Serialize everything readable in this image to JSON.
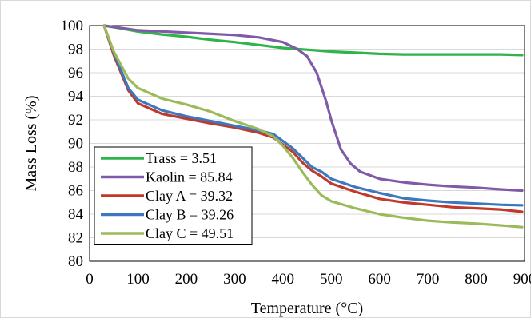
{
  "chart_data": {
    "type": "line",
    "title": "",
    "xlabel": "Temperature (°C)",
    "ylabel": "Mass Loss (%)",
    "xlim": [
      0,
      900
    ],
    "ylim": [
      80,
      100
    ],
    "x_ticks": [
      "0",
      "100",
      "200",
      "300",
      "400",
      "500",
      "600",
      "700",
      "800",
      "900"
    ],
    "y_ticks": [
      "80",
      "82",
      "84",
      "86",
      "88",
      "90",
      "92",
      "94",
      "96",
      "98",
      "100"
    ],
    "grid": "horizontal",
    "legend_position": "bottom-left",
    "series": [
      {
        "name": "Trass = 3.51",
        "color": "#2fb34a",
        "points": [
          [
            30,
            100
          ],
          [
            60,
            99.8
          ],
          [
            100,
            99.5
          ],
          [
            150,
            99.25
          ],
          [
            200,
            99.05
          ],
          [
            250,
            98.8
          ],
          [
            300,
            98.6
          ],
          [
            350,
            98.35
          ],
          [
            400,
            98.1
          ],
          [
            450,
            97.95
          ],
          [
            500,
            97.8
          ],
          [
            550,
            97.7
          ],
          [
            600,
            97.6
          ],
          [
            650,
            97.55
          ],
          [
            700,
            97.55
          ],
          [
            750,
            97.55
          ],
          [
            800,
            97.55
          ],
          [
            850,
            97.55
          ],
          [
            895,
            97.5
          ]
        ]
      },
      {
        "name": "Kaolin = 85.84",
        "color": "#7f5aa8",
        "points": [
          [
            30,
            100
          ],
          [
            100,
            99.6
          ],
          [
            200,
            99.4
          ],
          [
            300,
            99.2
          ],
          [
            350,
            99.0
          ],
          [
            400,
            98.6
          ],
          [
            430,
            98.0
          ],
          [
            450,
            97.4
          ],
          [
            470,
            96.0
          ],
          [
            490,
            93.5
          ],
          [
            500,
            92.0
          ],
          [
            520,
            89.5
          ],
          [
            540,
            88.3
          ],
          [
            560,
            87.6
          ],
          [
            600,
            87.0
          ],
          [
            650,
            86.7
          ],
          [
            700,
            86.5
          ],
          [
            750,
            86.35
          ],
          [
            800,
            86.25
          ],
          [
            850,
            86.1
          ],
          [
            895,
            86.0
          ]
        ]
      },
      {
        "name": "Clay A = 39.32",
        "color": "#c0392b",
        "points": [
          [
            30,
            100
          ],
          [
            50,
            97.5
          ],
          [
            80,
            94.5
          ],
          [
            100,
            93.4
          ],
          [
            150,
            92.5
          ],
          [
            200,
            92.1
          ],
          [
            250,
            91.7
          ],
          [
            300,
            91.35
          ],
          [
            350,
            90.9
          ],
          [
            380,
            90.5
          ],
          [
            400,
            89.9
          ],
          [
            420,
            89.3
          ],
          [
            440,
            88.4
          ],
          [
            460,
            87.7
          ],
          [
            480,
            87.2
          ],
          [
            500,
            86.6
          ],
          [
            550,
            85.9
          ],
          [
            600,
            85.3
          ],
          [
            650,
            85.0
          ],
          [
            700,
            84.8
          ],
          [
            750,
            84.6
          ],
          [
            800,
            84.5
          ],
          [
            850,
            84.4
          ],
          [
            895,
            84.2
          ]
        ]
      },
      {
        "name": "Clay B = 39.26",
        "color": "#3b78c0",
        "points": [
          [
            30,
            100
          ],
          [
            50,
            97.7
          ],
          [
            80,
            94.7
          ],
          [
            100,
            93.7
          ],
          [
            150,
            92.8
          ],
          [
            200,
            92.3
          ],
          [
            250,
            91.9
          ],
          [
            300,
            91.5
          ],
          [
            350,
            91.1
          ],
          [
            380,
            90.8
          ],
          [
            400,
            90.2
          ],
          [
            420,
            89.6
          ],
          [
            440,
            88.8
          ],
          [
            460,
            88.0
          ],
          [
            480,
            87.6
          ],
          [
            500,
            87.0
          ],
          [
            550,
            86.3
          ],
          [
            600,
            85.8
          ],
          [
            650,
            85.35
          ],
          [
            700,
            85.15
          ],
          [
            750,
            85.0
          ],
          [
            800,
            84.9
          ],
          [
            850,
            84.8
          ],
          [
            895,
            84.75
          ]
        ]
      },
      {
        "name": "Clay C = 49.51",
        "color": "#9bbb59",
        "points": [
          [
            30,
            100
          ],
          [
            50,
            97.8
          ],
          [
            80,
            95.5
          ],
          [
            100,
            94.7
          ],
          [
            150,
            93.8
          ],
          [
            200,
            93.3
          ],
          [
            250,
            92.7
          ],
          [
            300,
            91.9
          ],
          [
            350,
            91.2
          ],
          [
            380,
            90.6
          ],
          [
            400,
            89.8
          ],
          [
            420,
            88.8
          ],
          [
            440,
            87.6
          ],
          [
            460,
            86.5
          ],
          [
            480,
            85.6
          ],
          [
            500,
            85.1
          ],
          [
            550,
            84.5
          ],
          [
            600,
            84.0
          ],
          [
            650,
            83.7
          ],
          [
            700,
            83.45
          ],
          [
            750,
            83.3
          ],
          [
            800,
            83.2
          ],
          [
            850,
            83.05
          ],
          [
            895,
            82.9
          ]
        ]
      }
    ]
  }
}
